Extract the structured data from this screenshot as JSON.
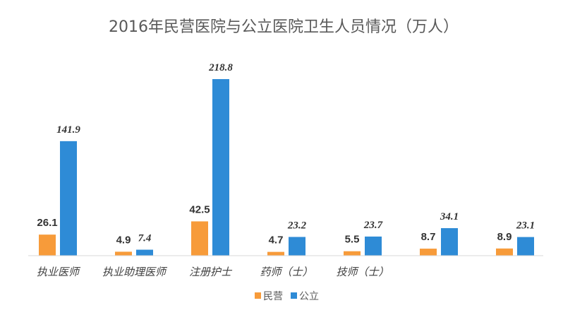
{
  "chart_data": {
    "type": "bar",
    "title": "2016年民营医院与公立医院卫生人员情况（万人）",
    "categories": [
      "执业医师",
      "执业助理医师",
      "注册护士",
      "药师（士）",
      "技师（士）",
      "",
      ""
    ],
    "series": [
      {
        "name": "民营",
        "color": "#F79B3A",
        "values": [
          26.1,
          4.9,
          42.5,
          4.7,
          5.5,
          8.7,
          8.9
        ]
      },
      {
        "name": "公立",
        "color": "#2E8BD6",
        "values": [
          141.9,
          7.4,
          218.8,
          23.2,
          23.7,
          34.1,
          23.1
        ]
      }
    ],
    "data_labels": {
      "民营": [
        "26.1",
        "4.9",
        "42.5",
        "4.7",
        "5.5",
        "8.7",
        "8.9"
      ],
      "公立": [
        "141.9",
        "7.4",
        "218.8",
        "23.2",
        "23.7",
        "34.1",
        "23.1"
      ]
    },
    "xlabel": "",
    "ylabel": "",
    "ylim": [
      0,
      218.8
    ],
    "grid": false,
    "legend": "bottom-center"
  }
}
